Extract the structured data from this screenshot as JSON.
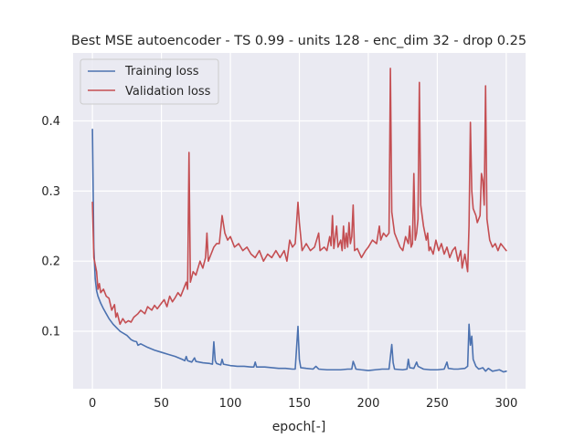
{
  "chart_data": {
    "type": "line",
    "title": "Best MSE autoencoder - TS 0.99 - units 128 - enc_dim 32 - drop 0.25",
    "xlabel": "epoch[-]",
    "ylabel": "",
    "xlim": [
      -14,
      314
    ],
    "ylim": [
      0.018,
      0.497
    ],
    "xticks": [
      0,
      50,
      100,
      150,
      200,
      250,
      300
    ],
    "yticks": [
      0.1,
      0.2,
      0.3,
      0.4
    ],
    "grid": true,
    "legend_position": "top-left",
    "series": [
      {
        "name": "Training loss",
        "color": "#4c72b0",
        "points": [
          [
            0,
            0.388
          ],
          [
            1,
            0.22
          ],
          [
            2,
            0.175
          ],
          [
            3,
            0.158
          ],
          [
            4,
            0.15
          ],
          [
            5,
            0.145
          ],
          [
            6,
            0.14
          ],
          [
            8,
            0.132
          ],
          [
            10,
            0.125
          ],
          [
            12,
            0.118
          ],
          [
            15,
            0.11
          ],
          [
            18,
            0.104
          ],
          [
            20,
            0.1
          ],
          [
            25,
            0.094
          ],
          [
            28,
            0.088
          ],
          [
            30,
            0.086
          ],
          [
            32,
            0.085
          ],
          [
            33,
            0.08
          ],
          [
            35,
            0.082
          ],
          [
            40,
            0.077
          ],
          [
            45,
            0.073
          ],
          [
            50,
            0.07
          ],
          [
            55,
            0.067
          ],
          [
            60,
            0.064
          ],
          [
            65,
            0.06
          ],
          [
            67,
            0.058
          ],
          [
            68,
            0.064
          ],
          [
            69,
            0.058
          ],
          [
            72,
            0.056
          ],
          [
            74,
            0.062
          ],
          [
            75,
            0.057
          ],
          [
            80,
            0.055
          ],
          [
            85,
            0.054
          ],
          [
            87,
            0.053
          ],
          [
            88,
            0.085
          ],
          [
            89,
            0.058
          ],
          [
            90,
            0.054
          ],
          [
            93,
            0.052
          ],
          [
            94,
            0.06
          ],
          [
            95,
            0.053
          ],
          [
            100,
            0.051
          ],
          [
            105,
            0.05
          ],
          [
            110,
            0.05
          ],
          [
            115,
            0.049
          ],
          [
            117,
            0.049
          ],
          [
            118,
            0.056
          ],
          [
            119,
            0.049
          ],
          [
            125,
            0.049
          ],
          [
            130,
            0.048
          ],
          [
            135,
            0.047
          ],
          [
            140,
            0.047
          ],
          [
            145,
            0.046
          ],
          [
            147,
            0.046
          ],
          [
            149,
            0.107
          ],
          [
            150,
            0.06
          ],
          [
            151,
            0.048
          ],
          [
            155,
            0.047
          ],
          [
            160,
            0.046
          ],
          [
            162,
            0.05
          ],
          [
            164,
            0.046
          ],
          [
            170,
            0.045
          ],
          [
            175,
            0.045
          ],
          [
            180,
            0.045
          ],
          [
            185,
            0.046
          ],
          [
            188,
            0.046
          ],
          [
            189,
            0.057
          ],
          [
            190,
            0.052
          ],
          [
            191,
            0.046
          ],
          [
            195,
            0.045
          ],
          [
            200,
            0.044
          ],
          [
            205,
            0.045
          ],
          [
            210,
            0.046
          ],
          [
            215,
            0.046
          ],
          [
            217,
            0.081
          ],
          [
            218,
            0.055
          ],
          [
            219,
            0.046
          ],
          [
            225,
            0.045
          ],
          [
            228,
            0.046
          ],
          [
            229,
            0.06
          ],
          [
            230,
            0.048
          ],
          [
            233,
            0.047
          ],
          [
            235,
            0.056
          ],
          [
            236,
            0.05
          ],
          [
            240,
            0.046
          ],
          [
            245,
            0.045
          ],
          [
            250,
            0.045
          ],
          [
            255,
            0.046
          ],
          [
            257,
            0.056
          ],
          [
            258,
            0.047
          ],
          [
            262,
            0.046
          ],
          [
            265,
            0.046
          ],
          [
            270,
            0.047
          ],
          [
            272,
            0.05
          ],
          [
            273,
            0.11
          ],
          [
            274,
            0.08
          ],
          [
            275,
            0.093
          ],
          [
            276,
            0.06
          ],
          [
            278,
            0.05
          ],
          [
            280,
            0.046
          ],
          [
            283,
            0.048
          ],
          [
            285,
            0.043
          ],
          [
            287,
            0.047
          ],
          [
            290,
            0.043
          ],
          [
            295,
            0.045
          ],
          [
            298,
            0.042
          ],
          [
            300,
            0.043
          ]
        ]
      },
      {
        "name": "Validation loss",
        "color": "#c44e52",
        "points": [
          [
            0,
            0.284
          ],
          [
            1,
            0.205
          ],
          [
            2,
            0.195
          ],
          [
            3,
            0.185
          ],
          [
            4,
            0.16
          ],
          [
            5,
            0.168
          ],
          [
            6,
            0.155
          ],
          [
            8,
            0.16
          ],
          [
            10,
            0.15
          ],
          [
            12,
            0.147
          ],
          [
            14,
            0.13
          ],
          [
            16,
            0.138
          ],
          [
            17,
            0.12
          ],
          [
            18,
            0.126
          ],
          [
            20,
            0.11
          ],
          [
            22,
            0.118
          ],
          [
            24,
            0.112
          ],
          [
            26,
            0.115
          ],
          [
            28,
            0.113
          ],
          [
            30,
            0.12
          ],
          [
            33,
            0.125
          ],
          [
            35,
            0.13
          ],
          [
            38,
            0.125
          ],
          [
            40,
            0.135
          ],
          [
            43,
            0.13
          ],
          [
            45,
            0.137
          ],
          [
            47,
            0.132
          ],
          [
            50,
            0.14
          ],
          [
            52,
            0.145
          ],
          [
            54,
            0.135
          ],
          [
            56,
            0.15
          ],
          [
            58,
            0.142
          ],
          [
            60,
            0.148
          ],
          [
            62,
            0.155
          ],
          [
            64,
            0.15
          ],
          [
            66,
            0.16
          ],
          [
            68,
            0.17
          ],
          [
            69,
            0.16
          ],
          [
            70,
            0.355
          ],
          [
            71,
            0.17
          ],
          [
            73,
            0.185
          ],
          [
            75,
            0.18
          ],
          [
            78,
            0.2
          ],
          [
            80,
            0.19
          ],
          [
            82,
            0.205
          ],
          [
            83,
            0.24
          ],
          [
            84,
            0.2
          ],
          [
            86,
            0.21
          ],
          [
            88,
            0.22
          ],
          [
            90,
            0.225
          ],
          [
            92,
            0.225
          ],
          [
            94,
            0.265
          ],
          [
            96,
            0.24
          ],
          [
            98,
            0.23
          ],
          [
            100,
            0.235
          ],
          [
            103,
            0.22
          ],
          [
            106,
            0.225
          ],
          [
            109,
            0.215
          ],
          [
            112,
            0.22
          ],
          [
            115,
            0.21
          ],
          [
            118,
            0.205
          ],
          [
            121,
            0.215
          ],
          [
            124,
            0.2
          ],
          [
            127,
            0.21
          ],
          [
            130,
            0.205
          ],
          [
            133,
            0.215
          ],
          [
            136,
            0.205
          ],
          [
            139,
            0.215
          ],
          [
            141,
            0.2
          ],
          [
            143,
            0.23
          ],
          [
            145,
            0.22
          ],
          [
            147,
            0.225
          ],
          [
            149,
            0.284
          ],
          [
            150,
            0.255
          ],
          [
            152,
            0.215
          ],
          [
            155,
            0.225
          ],
          [
            158,
            0.215
          ],
          [
            161,
            0.22
          ],
          [
            164,
            0.24
          ],
          [
            165,
            0.215
          ],
          [
            168,
            0.22
          ],
          [
            170,
            0.215
          ],
          [
            172,
            0.235
          ],
          [
            173,
            0.222
          ],
          [
            174,
            0.265
          ],
          [
            175,
            0.218
          ],
          [
            177,
            0.25
          ],
          [
            178,
            0.22
          ],
          [
            180,
            0.23
          ],
          [
            181,
            0.215
          ],
          [
            182,
            0.25
          ],
          [
            183,
            0.218
          ],
          [
            184,
            0.24
          ],
          [
            185,
            0.22
          ],
          [
            186,
            0.255
          ],
          [
            187,
            0.225
          ],
          [
            188,
            0.235
          ],
          [
            189,
            0.28
          ],
          [
            190,
            0.215
          ],
          [
            192,
            0.218
          ],
          [
            195,
            0.205
          ],
          [
            198,
            0.215
          ],
          [
            200,
            0.22
          ],
          [
            203,
            0.23
          ],
          [
            206,
            0.225
          ],
          [
            208,
            0.25
          ],
          [
            209,
            0.23
          ],
          [
            211,
            0.24
          ],
          [
            213,
            0.235
          ],
          [
            215,
            0.24
          ],
          [
            216,
            0.475
          ],
          [
            217,
            0.27
          ],
          [
            219,
            0.24
          ],
          [
            221,
            0.23
          ],
          [
            223,
            0.22
          ],
          [
            225,
            0.215
          ],
          [
            227,
            0.235
          ],
          [
            229,
            0.225
          ],
          [
            230,
            0.25
          ],
          [
            231,
            0.22
          ],
          [
            232,
            0.225
          ],
          [
            233,
            0.325
          ],
          [
            234,
            0.23
          ],
          [
            235,
            0.24
          ],
          [
            236,
            0.26
          ],
          [
            237,
            0.455
          ],
          [
            238,
            0.28
          ],
          [
            240,
            0.25
          ],
          [
            242,
            0.23
          ],
          [
            243,
            0.24
          ],
          [
            244,
            0.215
          ],
          [
            245,
            0.22
          ],
          [
            247,
            0.21
          ],
          [
            249,
            0.23
          ],
          [
            251,
            0.215
          ],
          [
            253,
            0.225
          ],
          [
            255,
            0.21
          ],
          [
            257,
            0.22
          ],
          [
            259,
            0.205
          ],
          [
            261,
            0.215
          ],
          [
            263,
            0.22
          ],
          [
            265,
            0.2
          ],
          [
            267,
            0.215
          ],
          [
            268,
            0.19
          ],
          [
            270,
            0.21
          ],
          [
            272,
            0.185
          ],
          [
            273,
            0.25
          ],
          [
            274,
            0.398
          ],
          [
            275,
            0.3
          ],
          [
            276,
            0.275
          ],
          [
            278,
            0.265
          ],
          [
            279,
            0.255
          ],
          [
            281,
            0.265
          ],
          [
            282,
            0.325
          ],
          [
            283,
            0.315
          ],
          [
            284,
            0.28
          ],
          [
            285,
            0.45
          ],
          [
            286,
            0.26
          ],
          [
            288,
            0.23
          ],
          [
            290,
            0.22
          ],
          [
            292,
            0.225
          ],
          [
            294,
            0.215
          ],
          [
            296,
            0.225
          ],
          [
            298,
            0.22
          ],
          [
            300,
            0.215
          ]
        ]
      }
    ]
  }
}
